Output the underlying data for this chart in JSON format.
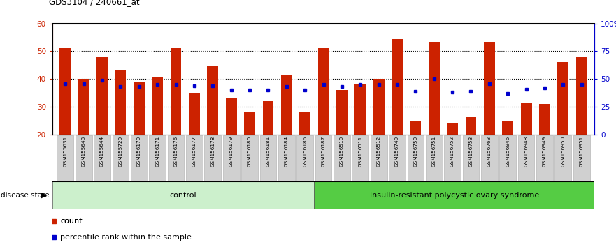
{
  "title": "GDS3104 / 240661_at",
  "samples": [
    "GSM155631",
    "GSM155643",
    "GSM155644",
    "GSM155729",
    "GSM156170",
    "GSM156171",
    "GSM156176",
    "GSM156177",
    "GSM156178",
    "GSM156179",
    "GSM156180",
    "GSM156181",
    "GSM156184",
    "GSM156186",
    "GSM156187",
    "GSM156510",
    "GSM156511",
    "GSM156512",
    "GSM156749",
    "GSM156750",
    "GSM156751",
    "GSM156752",
    "GSM156753",
    "GSM156763",
    "GSM156946",
    "GSM156948",
    "GSM156949",
    "GSM156950",
    "GSM156951"
  ],
  "counts": [
    51,
    40,
    48,
    43,
    39,
    40.5,
    51,
    35,
    44.5,
    33,
    28,
    32,
    41.5,
    28,
    51,
    36,
    38,
    40,
    54.5,
    25,
    53.5,
    24,
    26.5,
    53.5,
    25,
    31.5,
    31,
    46,
    48
  ],
  "percentile_ranks_pct": [
    46,
    46,
    49,
    43,
    43,
    45,
    45,
    44,
    44,
    40,
    40,
    40,
    43,
    40,
    45,
    43,
    45,
    45,
    45,
    39,
    50,
    38,
    39,
    46,
    37,
    41,
    42,
    45,
    45
  ],
  "control_count": 14,
  "group_labels": [
    "control",
    "insulin-resistant polycystic ovary syndrome"
  ],
  "bar_color": "#cc2200",
  "marker_color": "#0000cc",
  "ylim_left": [
    20,
    60
  ],
  "ylim_right": [
    0,
    100
  ],
  "yticks_left": [
    20,
    30,
    40,
    50,
    60
  ],
  "yticks_right": [
    0,
    25,
    50,
    75,
    100
  ],
  "ytick_labels_right": [
    "0",
    "25",
    "50",
    "75",
    "100%"
  ],
  "ctrl_color": "#ccf0cc",
  "disease_color": "#55cc44",
  "bar_bg": "#ffffff",
  "xtick_bg": "#d0d0d0",
  "xtick_edge": "#aaaaaa",
  "axis_label_color_left": "#cc2200",
  "axis_label_color_right": "#0000cc"
}
